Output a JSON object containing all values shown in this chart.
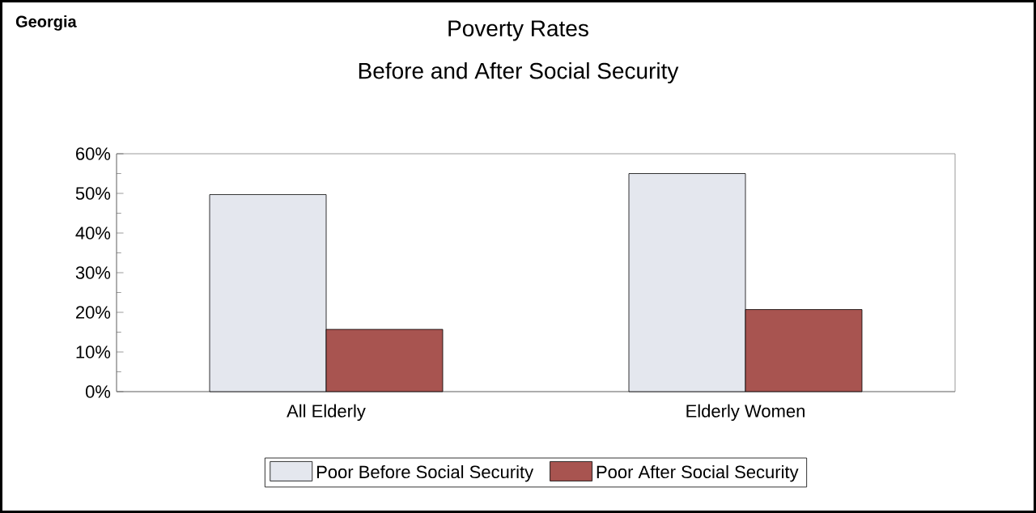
{
  "chart_data": {
    "type": "bar",
    "title": "Poverty Rates",
    "subtitle": "Before and After Social Security",
    "annotations": [
      "Georgia"
    ],
    "categories": [
      "All Elderly",
      "Elderly Women"
    ],
    "series": [
      {
        "name": "Poor Before Social Security",
        "color": "#e4e7ee",
        "values": [
          49.7,
          55
        ]
      },
      {
        "name": "Poor After Social Security",
        "color": "#a85450",
        "values": [
          15.7,
          20.7
        ]
      }
    ],
    "ylim": [
      0,
      60
    ],
    "yticks": [
      {
        "value": 0,
        "label": "0%"
      },
      {
        "value": 10,
        "label": "10%"
      },
      {
        "value": 20,
        "label": "20%"
      },
      {
        "value": 30,
        "label": "30%"
      },
      {
        "value": 40,
        "label": "40%"
      },
      {
        "value": 50,
        "label": "50%"
      },
      {
        "value": 60,
        "label": "60%"
      }
    ],
    "grid": false,
    "legend": "bottom"
  }
}
